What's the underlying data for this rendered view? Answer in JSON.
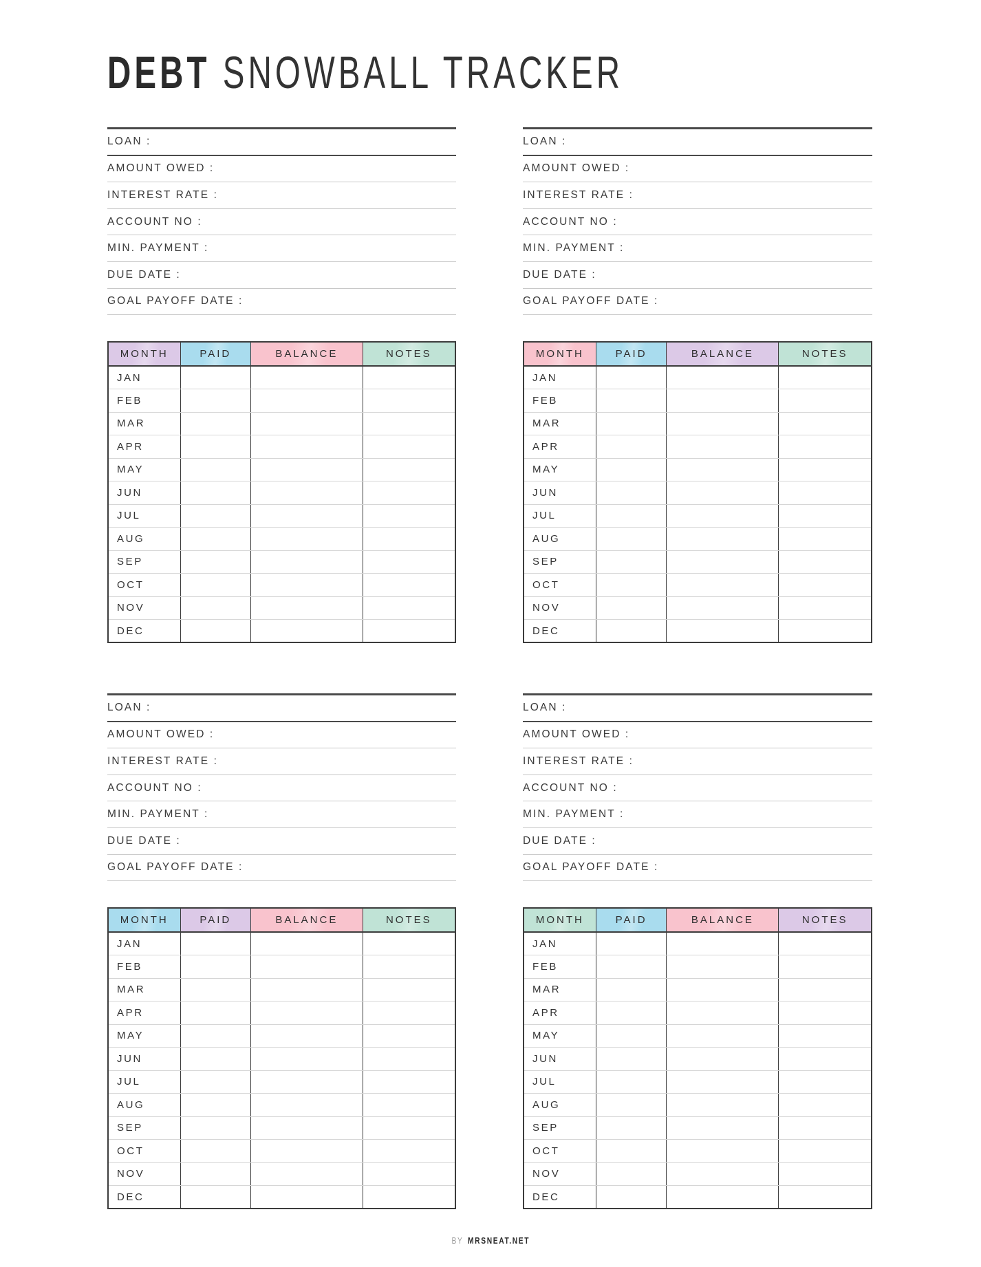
{
  "page_title": {
    "primary": "DEBT",
    "secondary": "SNOWBALL TRACKER"
  },
  "form": {
    "fields": [
      "LOAN :",
      "AMOUNT OWED :",
      "INTEREST RATE :",
      "ACCOUNT NO :",
      "MIN. PAYMENT :",
      "DUE DATE :",
      "GOAL PAYOFF DATE  :"
    ]
  },
  "table": {
    "columns": [
      "MONTH",
      "PAID",
      "BALANCE",
      "NOTES"
    ],
    "months": [
      "JAN",
      "FEB",
      "MAR",
      "APR",
      "MAY",
      "JUN",
      "JUL",
      "AUG",
      "SEP",
      "OCT",
      "NOV",
      "DEC"
    ]
  },
  "colors": {
    "lavender": "#dcc9e7",
    "blue": "#a9dcee",
    "pink": "#f9c3cd",
    "mint": "#c0e3d6"
  },
  "panels": [
    {
      "id": 1,
      "header_colors": [
        "lavender",
        "blue",
        "pink",
        "mint"
      ]
    },
    {
      "id": 2,
      "header_colors": [
        "pink",
        "blue",
        "lavender",
        "mint"
      ]
    },
    {
      "id": 3,
      "header_colors": [
        "blue",
        "lavender",
        "pink",
        "mint"
      ]
    },
    {
      "id": 4,
      "header_colors": [
        "mint",
        "blue",
        "pink",
        "lavender"
      ]
    }
  ],
  "footer": {
    "prefix": "BY",
    "brand": "MRSNEAT.NET"
  }
}
